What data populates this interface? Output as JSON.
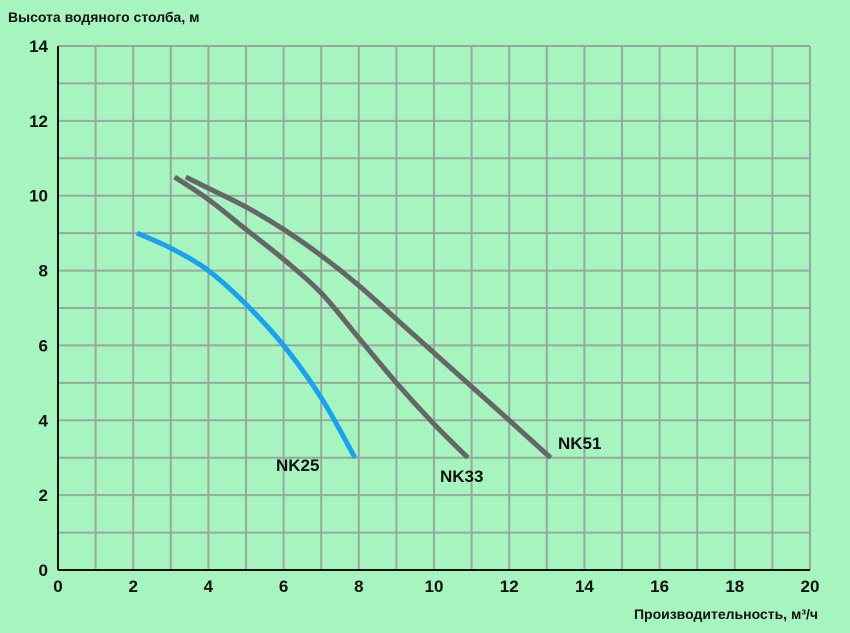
{
  "chart_data": {
    "type": "line",
    "ylabel": "Высота водяного столба, м",
    "xlabel": "Производительность, м³/ч",
    "xlim": [
      0,
      20
    ],
    "ylim": [
      0,
      14
    ],
    "x_ticks": [
      "0",
      "2",
      "4",
      "6",
      "8",
      "10",
      "12",
      "14",
      "16",
      "18",
      "20"
    ],
    "y_ticks": [
      "0",
      "2",
      "4",
      "6",
      "8",
      "10",
      "12",
      "14"
    ],
    "grid": true,
    "series": [
      {
        "name": "NK25",
        "color": "#1aa2f2",
        "points": [
          [
            2.1,
            9.0
          ],
          [
            3.0,
            8.6
          ],
          [
            4.0,
            8.0
          ],
          [
            5.0,
            7.1
          ],
          [
            6.0,
            6.0
          ],
          [
            7.0,
            4.6
          ],
          [
            7.9,
            3.0
          ]
        ]
      },
      {
        "name": "NK33",
        "color": "#666666",
        "points": [
          [
            3.1,
            10.5
          ],
          [
            4.0,
            9.9
          ],
          [
            5.0,
            9.1
          ],
          [
            6.0,
            8.3
          ],
          [
            7.0,
            7.4
          ],
          [
            8.0,
            6.2
          ],
          [
            9.0,
            5.0
          ],
          [
            10.0,
            3.9
          ],
          [
            10.9,
            3.0
          ]
        ]
      },
      {
        "name": "NK51",
        "color": "#666666",
        "points": [
          [
            3.4,
            10.5
          ],
          [
            4.0,
            10.2
          ],
          [
            5.0,
            9.7
          ],
          [
            6.0,
            9.1
          ],
          [
            7.0,
            8.4
          ],
          [
            8.0,
            7.6
          ],
          [
            9.0,
            6.7
          ],
          [
            10.0,
            5.8
          ],
          [
            11.0,
            4.9
          ],
          [
            12.0,
            4.0
          ],
          [
            13.1,
            3.0
          ]
        ]
      }
    ]
  }
}
